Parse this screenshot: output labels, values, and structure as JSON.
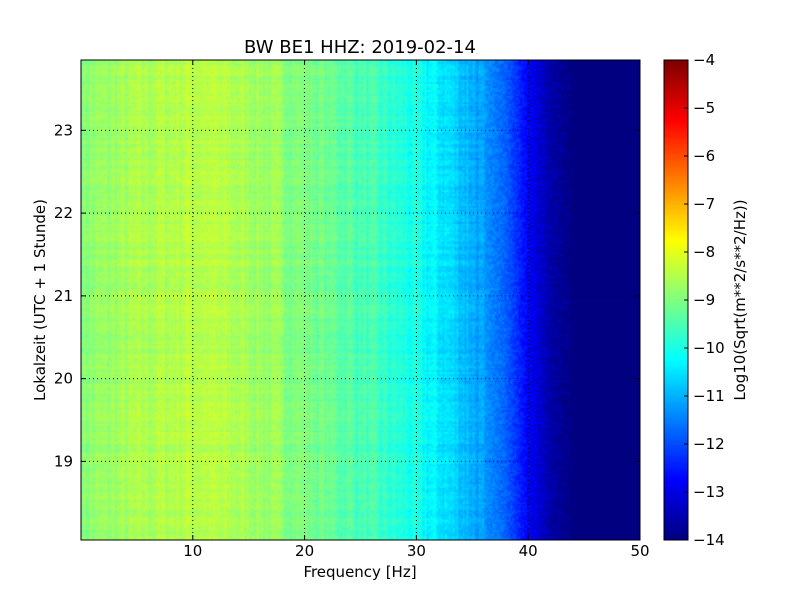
{
  "chart_data": {
    "type": "heatmap",
    "title": "BW BE1 HHZ: 2019-02-14",
    "xlabel": "Frequency [Hz]",
    "ylabel": "Lokalzeit (UTC + 1 Stunde)",
    "xlim": [
      0,
      50
    ],
    "ylim": [
      23.85,
      18.05
    ],
    "x_ticks": [
      10,
      20,
      30,
      40,
      50
    ],
    "y_ticks": [
      19,
      20,
      21,
      22,
      23
    ],
    "grid": true,
    "colormap": "jet",
    "colorbar": {
      "label": "Log10(Sqrt(m**2/s**2/Hz))",
      "range": [
        -14,
        -4
      ],
      "ticks": [
        -4,
        -5,
        -6,
        -7,
        -8,
        -9,
        -10,
        -11,
        -12,
        -13,
        -14
      ]
    },
    "frequency_profile_hz": [
      0,
      5,
      10,
      15,
      20,
      25,
      30,
      33,
      35,
      38,
      40,
      42,
      44,
      46,
      50
    ],
    "level_profile_log10": [
      -8.9,
      -8.6,
      -8.4,
      -8.6,
      -9.0,
      -9.5,
      -10.1,
      -10.6,
      -11.0,
      -11.8,
      -12.8,
      -13.6,
      -14.0,
      -14.0,
      -14.0
    ]
  }
}
